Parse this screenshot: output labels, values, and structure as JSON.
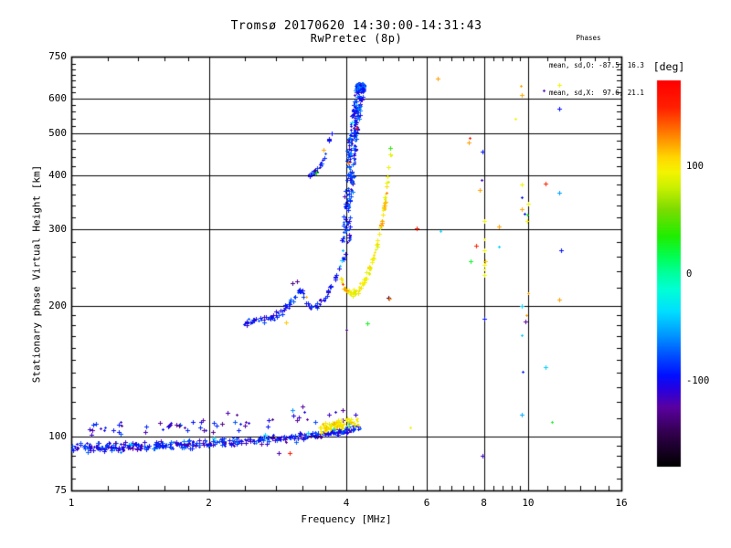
{
  "header": {
    "title": "Tromsø 20170620 14:30:00-14:31:43",
    "subtitle": "RwPretec (8p)"
  },
  "colors": {
    "background": "#ffffff",
    "foreground": "#000000",
    "grid": "#000000"
  },
  "chart_data": {
    "type": "scatter",
    "title": "Tromsø 20170620 14:30:00-14:31:43",
    "subtitle": "RwPretec (8p)",
    "annotations": {
      "heading": "Phases",
      "o_line": "mean, sd,O: -87.5, 16.3",
      "x_line": "mean, sd,X:  97.6, 21.1"
    },
    "x_axis": {
      "label": "Frequency [MHz]",
      "scale": "log",
      "range": [
        1,
        16
      ],
      "major_ticks": [
        1,
        2,
        4,
        6,
        8,
        10,
        16
      ],
      "minor_ticks": [
        1.2,
        1.4,
        1.6,
        1.8,
        2.4,
        2.8,
        3.2,
        3.6,
        4.4,
        4.8,
        5.2,
        5.6,
        6.4,
        6.8,
        7.2,
        7.6,
        8.4,
        8.8,
        9.2,
        9.6,
        11,
        12,
        13,
        14,
        15
      ],
      "grid_at": [
        2,
        4,
        6,
        8,
        10
      ]
    },
    "y_axis": {
      "label": "Stationary phase Virtual Height [km]",
      "scale": "log",
      "range": [
        75,
        750
      ],
      "major_ticks": [
        75,
        100,
        200,
        300,
        400,
        500,
        600,
        750
      ],
      "minor_ticks": [
        80,
        85,
        90,
        95,
        110,
        120,
        130,
        140,
        150,
        160,
        170,
        180,
        190,
        220,
        240,
        260,
        280,
        320,
        340,
        360,
        380,
        420,
        440,
        460,
        480,
        520,
        540,
        560,
        580,
        620,
        640,
        660,
        680,
        700,
        720
      ],
      "grid_at": [
        100,
        200,
        300,
        400,
        500,
        600
      ]
    },
    "colorbar": {
      "label": "[deg]",
      "range": [
        -180,
        180
      ],
      "ticks": [
        100,
        0,
        -100
      ],
      "stops": [
        [
          -180,
          "#000000"
        ],
        [
          -150,
          "#30004a"
        ],
        [
          -125,
          "#5a00a0"
        ],
        [
          -108,
          "#2800e0"
        ],
        [
          -95,
          "#0010ff"
        ],
        [
          -75,
          "#0055ff"
        ],
        [
          -55,
          "#00a0ff"
        ],
        [
          -35,
          "#00e0ff"
        ],
        [
          -15,
          "#00ffd5"
        ],
        [
          0,
          "#00ff9e"
        ],
        [
          15,
          "#00ff55"
        ],
        [
          35,
          "#20ee00"
        ],
        [
          60,
          "#7ddc00"
        ],
        [
          80,
          "#c8f000"
        ],
        [
          95,
          "#f4f400"
        ],
        [
          108,
          "#ffd800"
        ],
        [
          122,
          "#ffa000"
        ],
        [
          138,
          "#ff6000"
        ],
        [
          155,
          "#ff2000"
        ],
        [
          180,
          "#ff0000"
        ]
      ]
    },
    "clusters": [
      {
        "name": "e-region-band",
        "count": 400,
        "seed": 11,
        "f_range": [
          1.0,
          4.3
        ],
        "f_jitter": 0,
        "knots": [
          [
            1.0,
            94.5
          ],
          [
            1.3,
            94.5
          ],
          [
            1.6,
            95.5
          ],
          [
            2.0,
            96.5
          ],
          [
            2.4,
            97.5
          ],
          [
            2.8,
            98.5
          ],
          [
            3.2,
            100
          ],
          [
            3.6,
            101.5
          ],
          [
            4.0,
            103.5
          ],
          [
            4.3,
            105.5
          ]
        ],
        "h_jitter": 2.6,
        "phase_mean": -95,
        "phase_spread": 32
      },
      {
        "name": "e-band-upper-sprinkle",
        "count": 55,
        "seed": 12,
        "f_range": [
          1.05,
          4.2
        ],
        "f_jitter": 0,
        "knots": [
          [
            1.05,
            104
          ],
          [
            1.5,
            105
          ],
          [
            2.0,
            106
          ],
          [
            2.5,
            107
          ],
          [
            3.0,
            109
          ],
          [
            3.5,
            111
          ],
          [
            4.2,
            111
          ]
        ],
        "h_jitter": 4.5,
        "phase_mean": -105,
        "phase_spread": 32
      },
      {
        "name": "e-band-yellow",
        "count": 75,
        "seed": 13,
        "f_range": [
          3.5,
          4.25
        ],
        "f_jitter": 0,
        "knots": [
          [
            3.5,
            104
          ],
          [
            3.75,
            106
          ],
          [
            4.0,
            107.5
          ],
          [
            4.25,
            108
          ]
        ],
        "h_jitter": 3.2,
        "phase_mean": 100,
        "phase_spread": 17
      },
      {
        "name": "f-lower-branch",
        "count": 100,
        "seed": 14,
        "f_range": [
          2.4,
          3.97
        ],
        "f_jitter": 0.02,
        "knots": [
          [
            2.4,
            183
          ],
          [
            2.6,
            185
          ],
          [
            2.8,
            189
          ],
          [
            3.0,
            201
          ],
          [
            3.1,
            212
          ],
          [
            3.17,
            218
          ],
          [
            3.27,
            204
          ],
          [
            3.37,
            196
          ],
          [
            3.47,
            200
          ],
          [
            3.57,
            208
          ],
          [
            3.67,
            219
          ],
          [
            3.77,
            230
          ],
          [
            3.87,
            244
          ],
          [
            3.97,
            264
          ]
        ],
        "h_jitter": 4,
        "phase_mean": -95,
        "phase_spread": 22
      },
      {
        "name": "f-steep-o-trace",
        "count": 240,
        "seed": 15,
        "f_range": [
          3.98,
          4.3
        ],
        "f_jitter": 0.085,
        "knots": [
          [
            3.98,
            280
          ],
          [
            4.01,
            310
          ],
          [
            4.04,
            350
          ],
          [
            4.07,
            395
          ],
          [
            4.1,
            440
          ],
          [
            4.14,
            490
          ],
          [
            4.18,
            535
          ],
          [
            4.22,
            575
          ],
          [
            4.26,
            612
          ],
          [
            4.3,
            645
          ]
        ],
        "h_jitter": 14,
        "phase_mean": -90,
        "phase_spread": 30
      },
      {
        "name": "f-top-cluster",
        "count": 60,
        "seed": 16,
        "f_range": [
          4.18,
          4.38
        ],
        "f_jitter": 0,
        "knots": [
          [
            4.18,
            638
          ],
          [
            4.38,
            642
          ]
        ],
        "h_jitter": 13,
        "phase_mean": -85,
        "phase_spread": 27
      },
      {
        "name": "f-arm",
        "count": 26,
        "seed": 17,
        "f_range": [
          3.3,
          3.7
        ],
        "f_jitter": 0.015,
        "knots": [
          [
            3.3,
            400
          ],
          [
            3.4,
            404
          ],
          [
            3.5,
            418
          ],
          [
            3.58,
            440
          ],
          [
            3.65,
            465
          ],
          [
            3.7,
            500
          ]
        ],
        "h_jitter": 5,
        "phase_mean": -90,
        "phase_spread": 20
      },
      {
        "name": "x-trace",
        "count": 85,
        "seed": 18,
        "f_range": [
          3.88,
          5.03
        ],
        "f_jitter": 0.012,
        "knots": [
          [
            3.88,
            232
          ],
          [
            3.96,
            221
          ],
          [
            4.06,
            216
          ],
          [
            4.16,
            214
          ],
          [
            4.26,
            218
          ],
          [
            4.36,
            226
          ],
          [
            4.46,
            237
          ],
          [
            4.56,
            254
          ],
          [
            4.66,
            275
          ],
          [
            4.76,
            302
          ],
          [
            4.84,
            338
          ],
          [
            4.9,
            372
          ],
          [
            4.95,
            412
          ],
          [
            5.0,
            450
          ],
          [
            5.03,
            465
          ]
        ],
        "h_jitter": 5,
        "phase_mean": 95,
        "phase_spread": 13
      },
      {
        "name": "x-trace-orange-mid",
        "count": 12,
        "seed": 19,
        "f_range": [
          4.76,
          4.9
        ],
        "f_jitter": 0.012,
        "knots": [
          [
            4.76,
            302
          ],
          [
            4.84,
            338
          ],
          [
            4.9,
            372
          ]
        ],
        "h_jitter": 5,
        "phase_mean": 122,
        "phase_spread": 10
      }
    ],
    "extra_points": [
      [
        1.13,
        107,
        -85
      ],
      [
        1.28,
        108,
        -110
      ],
      [
        1.35,
        96,
        -40
      ],
      [
        2.05,
        99,
        -40
      ],
      [
        2.2,
        113,
        -120
      ],
      [
        2.3,
        112,
        -130
      ],
      [
        2.65,
        101,
        -38
      ],
      [
        2.85,
        91.7,
        -120
      ],
      [
        3.0,
        91.5,
        160
      ],
      [
        3.05,
        115,
        -60
      ],
      [
        3.2,
        117,
        -125
      ],
      [
        3.3,
        102,
        -42
      ],
      [
        3.75,
        104,
        -45
      ],
      [
        4.05,
        107,
        -40
      ],
      [
        2.95,
        183,
        112
      ],
      [
        3.05,
        225,
        -135
      ],
      [
        3.12,
        228,
        -130
      ],
      [
        3.27,
        210,
        118
      ],
      [
        3.42,
        412,
        -135
      ],
      [
        3.44,
        406,
        35
      ],
      [
        3.57,
        458,
        120
      ],
      [
        3.88,
        247,
        -42
      ],
      [
        3.9,
        255,
        -40
      ],
      [
        3.93,
        268,
        -45
      ],
      [
        3.92,
        224,
        148
      ],
      [
        3.96,
        219,
        125
      ],
      [
        4.0,
        217,
        130
      ],
      [
        4.0,
        176,
        -135
      ],
      [
        4.03,
        428,
        130
      ],
      [
        4.12,
        530,
        -35
      ],
      [
        4.2,
        515,
        165
      ],
      [
        4.45,
        182,
        28
      ],
      [
        4.95,
        209,
        -140
      ],
      [
        4.97,
        208,
        125
      ],
      [
        5.0,
        462,
        40
      ],
      [
        6.33,
        668,
        122
      ],
      [
        9.64,
        642,
        122
      ],
      [
        11.7,
        645,
        95
      ],
      [
        10.8,
        626,
        -120
      ],
      [
        9.68,
        612,
        120
      ],
      [
        11.7,
        570,
        -95
      ],
      [
        9.36,
        540,
        95
      ],
      [
        7.45,
        488,
        160
      ],
      [
        7.42,
        476,
        122
      ],
      [
        7.93,
        452,
        -95
      ],
      [
        7.9,
        390,
        -110
      ],
      [
        7.85,
        370,
        122
      ],
      [
        9.7,
        381,
        95
      ],
      [
        10.9,
        383,
        155
      ],
      [
        11.7,
        365,
        -55
      ],
      [
        9.7,
        355,
        -95
      ],
      [
        10.0,
        344,
        92
      ],
      [
        9.7,
        334,
        120
      ],
      [
        9.8,
        326,
        -95
      ],
      [
        9.95,
        325,
        30
      ],
      [
        9.95,
        313,
        95
      ],
      [
        8.03,
        313,
        95
      ],
      [
        5.7,
        302,
        160
      ],
      [
        6.42,
        297,
        -35
      ],
      [
        8.65,
        305,
        122
      ],
      [
        8.03,
        285,
        95
      ],
      [
        7.7,
        275,
        155
      ],
      [
        8.65,
        274,
        -40
      ],
      [
        11.8,
        269,
        -95
      ],
      [
        8.03,
        268,
        95
      ],
      [
        7.5,
        253,
        25
      ],
      [
        8.05,
        253,
        112
      ],
      [
        8.03,
        248,
        95
      ],
      [
        8.03,
        242,
        95
      ],
      [
        8.03,
        236,
        95
      ],
      [
        10.0,
        214,
        120
      ],
      [
        11.7,
        207,
        122
      ],
      [
        9.7,
        200,
        -38
      ],
      [
        8.03,
        187,
        -95
      ],
      [
        9.9,
        190,
        122
      ],
      [
        9.88,
        184,
        -125
      ],
      [
        9.7,
        171,
        -38
      ],
      [
        9.73,
        141,
        -90
      ],
      [
        10.9,
        144,
        -40
      ],
      [
        9.7,
        112,
        -50
      ],
      [
        11.25,
        108,
        28
      ],
      [
        5.52,
        105,
        95
      ],
      [
        7.93,
        90,
        -115
      ]
    ]
  }
}
